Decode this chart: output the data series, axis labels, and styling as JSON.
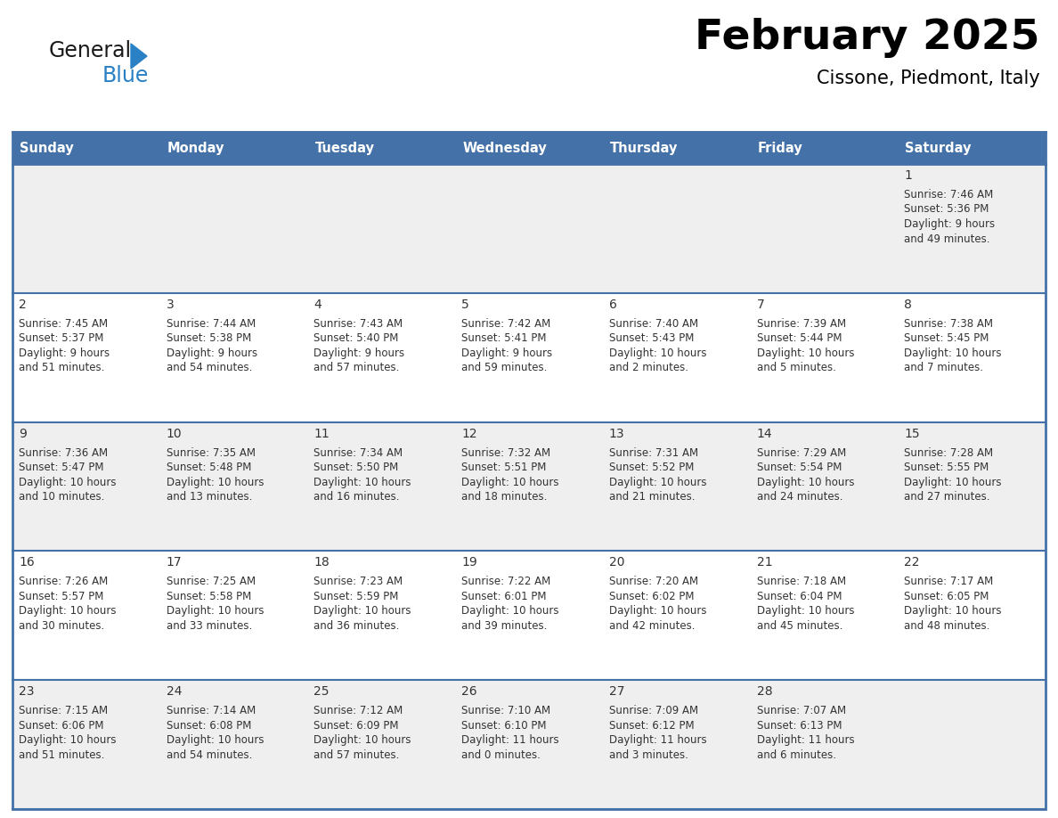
{
  "title": "February 2025",
  "subtitle": "Cissone, Piedmont, Italy",
  "header_bg": "#4472A8",
  "header_text": "#FFFFFF",
  "cell_bg_row0": "#EFEFEF",
  "cell_bg_row1": "#EFEFEF",
  "cell_bg_row2": "#FFFFFF",
  "cell_bg_row3": "#EFEFEF",
  "cell_bg_row4": "#FFFFFF",
  "cell_bg_row5": "#EFEFEF",
  "cell_border": "#4472A8",
  "text_color": "#333333",
  "day_names": [
    "Sunday",
    "Monday",
    "Tuesday",
    "Wednesday",
    "Thursday",
    "Friday",
    "Saturday"
  ],
  "days": [
    {
      "day": 1,
      "col": 6,
      "row": 0,
      "sunrise": "7:46 AM",
      "sunset": "5:36 PM",
      "daylight": "9 hours and 49 minutes."
    },
    {
      "day": 2,
      "col": 0,
      "row": 1,
      "sunrise": "7:45 AM",
      "sunset": "5:37 PM",
      "daylight": "9 hours and 51 minutes."
    },
    {
      "day": 3,
      "col": 1,
      "row": 1,
      "sunrise": "7:44 AM",
      "sunset": "5:38 PM",
      "daylight": "9 hours and 54 minutes."
    },
    {
      "day": 4,
      "col": 2,
      "row": 1,
      "sunrise": "7:43 AM",
      "sunset": "5:40 PM",
      "daylight": "9 hours and 57 minutes."
    },
    {
      "day": 5,
      "col": 3,
      "row": 1,
      "sunrise": "7:42 AM",
      "sunset": "5:41 PM",
      "daylight": "9 hours and 59 minutes."
    },
    {
      "day": 6,
      "col": 4,
      "row": 1,
      "sunrise": "7:40 AM",
      "sunset": "5:43 PM",
      "daylight": "10 hours and 2 minutes."
    },
    {
      "day": 7,
      "col": 5,
      "row": 1,
      "sunrise": "7:39 AM",
      "sunset": "5:44 PM",
      "daylight": "10 hours and 5 minutes."
    },
    {
      "day": 8,
      "col": 6,
      "row": 1,
      "sunrise": "7:38 AM",
      "sunset": "5:45 PM",
      "daylight": "10 hours and 7 minutes."
    },
    {
      "day": 9,
      "col": 0,
      "row": 2,
      "sunrise": "7:36 AM",
      "sunset": "5:47 PM",
      "daylight": "10 hours and 10 minutes."
    },
    {
      "day": 10,
      "col": 1,
      "row": 2,
      "sunrise": "7:35 AM",
      "sunset": "5:48 PM",
      "daylight": "10 hours and 13 minutes."
    },
    {
      "day": 11,
      "col": 2,
      "row": 2,
      "sunrise": "7:34 AM",
      "sunset": "5:50 PM",
      "daylight": "10 hours and 16 minutes."
    },
    {
      "day": 12,
      "col": 3,
      "row": 2,
      "sunrise": "7:32 AM",
      "sunset": "5:51 PM",
      "daylight": "10 hours and 18 minutes."
    },
    {
      "day": 13,
      "col": 4,
      "row": 2,
      "sunrise": "7:31 AM",
      "sunset": "5:52 PM",
      "daylight": "10 hours and 21 minutes."
    },
    {
      "day": 14,
      "col": 5,
      "row": 2,
      "sunrise": "7:29 AM",
      "sunset": "5:54 PM",
      "daylight": "10 hours and 24 minutes."
    },
    {
      "day": 15,
      "col": 6,
      "row": 2,
      "sunrise": "7:28 AM",
      "sunset": "5:55 PM",
      "daylight": "10 hours and 27 minutes."
    },
    {
      "day": 16,
      "col": 0,
      "row": 3,
      "sunrise": "7:26 AM",
      "sunset": "5:57 PM",
      "daylight": "10 hours and 30 minutes."
    },
    {
      "day": 17,
      "col": 1,
      "row": 3,
      "sunrise": "7:25 AM",
      "sunset": "5:58 PM",
      "daylight": "10 hours and 33 minutes."
    },
    {
      "day": 18,
      "col": 2,
      "row": 3,
      "sunrise": "7:23 AM",
      "sunset": "5:59 PM",
      "daylight": "10 hours and 36 minutes."
    },
    {
      "day": 19,
      "col": 3,
      "row": 3,
      "sunrise": "7:22 AM",
      "sunset": "6:01 PM",
      "daylight": "10 hours and 39 minutes."
    },
    {
      "day": 20,
      "col": 4,
      "row": 3,
      "sunrise": "7:20 AM",
      "sunset": "6:02 PM",
      "daylight": "10 hours and 42 minutes."
    },
    {
      "day": 21,
      "col": 5,
      "row": 3,
      "sunrise": "7:18 AM",
      "sunset": "6:04 PM",
      "daylight": "10 hours and 45 minutes."
    },
    {
      "day": 22,
      "col": 6,
      "row": 3,
      "sunrise": "7:17 AM",
      "sunset": "6:05 PM",
      "daylight": "10 hours and 48 minutes."
    },
    {
      "day": 23,
      "col": 0,
      "row": 4,
      "sunrise": "7:15 AM",
      "sunset": "6:06 PM",
      "daylight": "10 hours and 51 minutes."
    },
    {
      "day": 24,
      "col": 1,
      "row": 4,
      "sunrise": "7:14 AM",
      "sunset": "6:08 PM",
      "daylight": "10 hours and 54 minutes."
    },
    {
      "day": 25,
      "col": 2,
      "row": 4,
      "sunrise": "7:12 AM",
      "sunset": "6:09 PM",
      "daylight": "10 hours and 57 minutes."
    },
    {
      "day": 26,
      "col": 3,
      "row": 4,
      "sunrise": "7:10 AM",
      "sunset": "6:10 PM",
      "daylight": "11 hours and 0 minutes."
    },
    {
      "day": 27,
      "col": 4,
      "row": 4,
      "sunrise": "7:09 AM",
      "sunset": "6:12 PM",
      "daylight": "11 hours and 3 minutes."
    },
    {
      "day": 28,
      "col": 5,
      "row": 4,
      "sunrise": "7:07 AM",
      "sunset": "6:13 PM",
      "daylight": "11 hours and 6 minutes."
    }
  ],
  "num_rows": 5,
  "num_cols": 7,
  "logo_general_color": "#1a1a1a",
  "logo_blue_color": "#2980C4",
  "logo_triangle_color": "#2980C4",
  "row_bg_colors": [
    "#EFEFEF",
    "#FFFFFF",
    "#EFEFEF",
    "#FFFFFF",
    "#EFEFEF"
  ]
}
